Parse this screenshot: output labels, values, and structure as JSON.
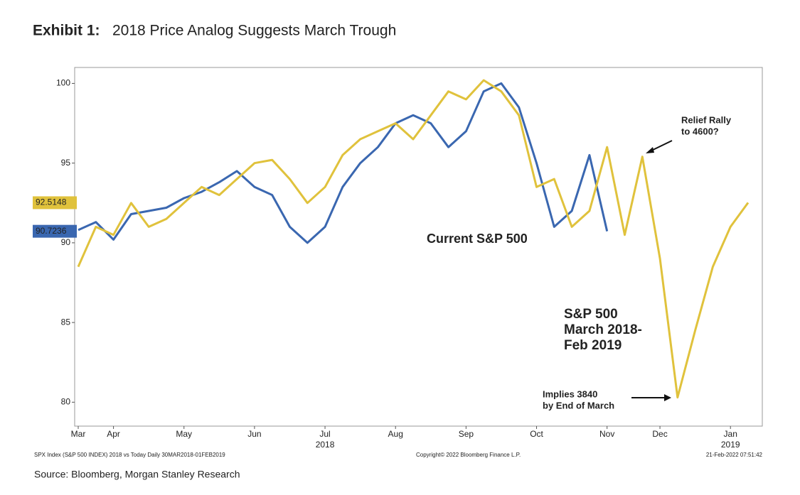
{
  "chart_data": {
    "type": "line",
    "title_prefix": "Exhibit 1:",
    "title": "2018 Price Analog Suggests March Trough",
    "categories": [
      "Mar",
      null,
      "Apr",
      null,
      null,
      null,
      "May",
      null,
      null,
      null,
      "Jun",
      null,
      null,
      null,
      "Jul",
      null,
      null,
      null,
      "Aug",
      null,
      null,
      null,
      "Sep",
      null,
      null,
      null,
      "Oct",
      null,
      null,
      null,
      "Nov",
      null,
      null,
      "Dec",
      null,
      null,
      null,
      "Jan",
      null
    ],
    "x_group_labels": [
      "2018",
      "2019"
    ],
    "series": [
      {
        "name": "S&P 500 March 2018-Feb 2019",
        "name_lines": [
          "S&P 500",
          "March 2018-",
          "Feb 2019"
        ],
        "color": "#e0c23c",
        "last_value": 92.5148,
        "values": [
          88.5,
          91,
          90.5,
          92.5,
          91,
          91.5,
          92.5,
          93.5,
          93,
          94,
          95,
          95.2,
          94,
          92.5,
          93.5,
          95.5,
          96.5,
          97,
          97.5,
          96.5,
          98,
          99.5,
          99,
          100.2,
          99.5,
          98,
          93.5,
          94,
          91,
          92,
          96,
          90.5,
          95.4,
          89,
          80.3,
          84.5,
          88.5,
          91,
          92.5148
        ]
      },
      {
        "name": "Current S&P 500",
        "color": "#3a67b0",
        "last_value": 90.7236,
        "values": [
          90.8,
          91.3,
          90.2,
          91.8,
          92,
          92.2,
          92.8,
          93.2,
          93.8,
          94.5,
          93.5,
          93,
          91,
          90,
          91,
          93.5,
          95,
          96,
          97.5,
          98,
          97.5,
          96,
          97,
          99.5,
          100,
          98.5,
          95,
          91,
          92,
          95.5,
          90.7236,
          null,
          null,
          null,
          null,
          null,
          null,
          null,
          null
        ]
      }
    ],
    "ylim": [
      78.5,
      101
    ],
    "yticks": [
      80,
      85,
      90,
      95,
      100
    ],
    "annotations": [
      {
        "lines": [
          "Relief Rally",
          "to 4600?"
        ]
      },
      {
        "lines": [
          "Implies 3840",
          "by End of March"
        ]
      }
    ],
    "footer_left": "SPX Index (S&P 500 INDEX) 2018 vs Today  Daily 30MAR2018-01FEB2019",
    "footer_center": "Copyright© 2022 Bloomberg Finance L.P.",
    "footer_right": "21-Feb-2022 07:51:42",
    "source": "Source: Bloomberg, Morgan Stanley Research"
  }
}
